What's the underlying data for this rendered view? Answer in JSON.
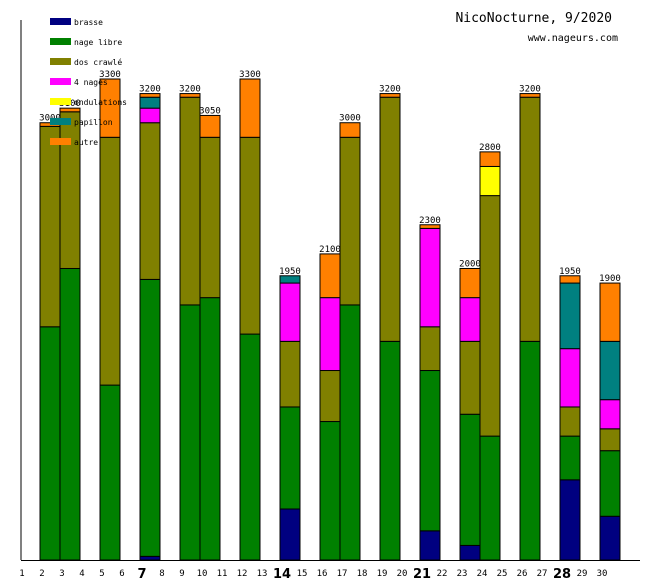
{
  "chart_data": {
    "type": "bar",
    "stacked": true,
    "title": "NicoNocturne, 9/2020",
    "subtitle": "www.nageurs.com",
    "xlabel": "",
    "ylabel": "",
    "ylim": [
      0,
      3300
    ],
    "grid": false,
    "legend_position": "top-left",
    "days": [
      1,
      2,
      3,
      4,
      5,
      6,
      7,
      8,
      9,
      10,
      11,
      12,
      13,
      14,
      15,
      16,
      17,
      18,
      19,
      20,
      21,
      22,
      23,
      24,
      25,
      26,
      27,
      28,
      29,
      30
    ],
    "bold_days": [
      7,
      14,
      21,
      28
    ],
    "series": [
      {
        "name": "brasse",
        "color": "#000080",
        "values": [
          0,
          0,
          0,
          0,
          0,
          0,
          25,
          0,
          0,
          0,
          0,
          0,
          0,
          350,
          0,
          0,
          0,
          0,
          0,
          0,
          200,
          0,
          100,
          0,
          0,
          0,
          0,
          550,
          0,
          300
        ]
      },
      {
        "name": "nage libre",
        "color": "#008000",
        "values": [
          0,
          1600,
          2000,
          0,
          1200,
          0,
          1900,
          0,
          1750,
          1800,
          0,
          1550,
          0,
          700,
          0,
          950,
          1750,
          0,
          1500,
          0,
          1100,
          0,
          900,
          850,
          0,
          1500,
          0,
          300,
          0,
          450
        ]
      },
      {
        "name": "dos crawlé",
        "color": "#808000",
        "values": [
          0,
          1375,
          1075,
          0,
          1700,
          0,
          1075,
          0,
          1425,
          1100,
          0,
          1350,
          0,
          450,
          0,
          350,
          1150,
          0,
          1675,
          0,
          300,
          0,
          500,
          1650,
          0,
          1675,
          0,
          200,
          0,
          150
        ]
      },
      {
        "name": "4 nages",
        "color": "#ff00ff",
        "values": [
          0,
          0,
          0,
          0,
          0,
          0,
          100,
          0,
          0,
          0,
          0,
          0,
          0,
          400,
          0,
          500,
          0,
          0,
          0,
          0,
          675,
          0,
          300,
          0,
          0,
          0,
          0,
          400,
          0,
          200
        ]
      },
      {
        "name": "ondulations",
        "color": "#ffff00",
        "values": [
          0,
          0,
          0,
          0,
          0,
          0,
          0,
          0,
          0,
          0,
          0,
          0,
          0,
          0,
          0,
          0,
          0,
          0,
          0,
          0,
          0,
          0,
          0,
          200,
          0,
          0,
          0,
          0,
          0,
          0
        ]
      },
      {
        "name": "papillon",
        "color": "#008080",
        "values": [
          0,
          0,
          0,
          0,
          0,
          0,
          75,
          0,
          0,
          0,
          0,
          0,
          0,
          50,
          0,
          0,
          0,
          0,
          0,
          0,
          0,
          0,
          0,
          0,
          0,
          0,
          0,
          450,
          0,
          400
        ]
      },
      {
        "name": "autre",
        "color": "#ff8000",
        "values": [
          0,
          25,
          25,
          0,
          400,
          0,
          25,
          0,
          25,
          150,
          0,
          400,
          0,
          0,
          0,
          300,
          100,
          0,
          25,
          0,
          25,
          0,
          200,
          100,
          0,
          25,
          0,
          50,
          0,
          400
        ]
      }
    ],
    "totals": [
      0,
      3000,
      3100,
      0,
      3300,
      0,
      3200,
      0,
      3200,
      3050,
      0,
      3300,
      0,
      1950,
      0,
      2100,
      3000,
      0,
      3200,
      0,
      2300,
      0,
      2000,
      2800,
      0,
      3200,
      0,
      1950,
      0,
      1900
    ]
  }
}
